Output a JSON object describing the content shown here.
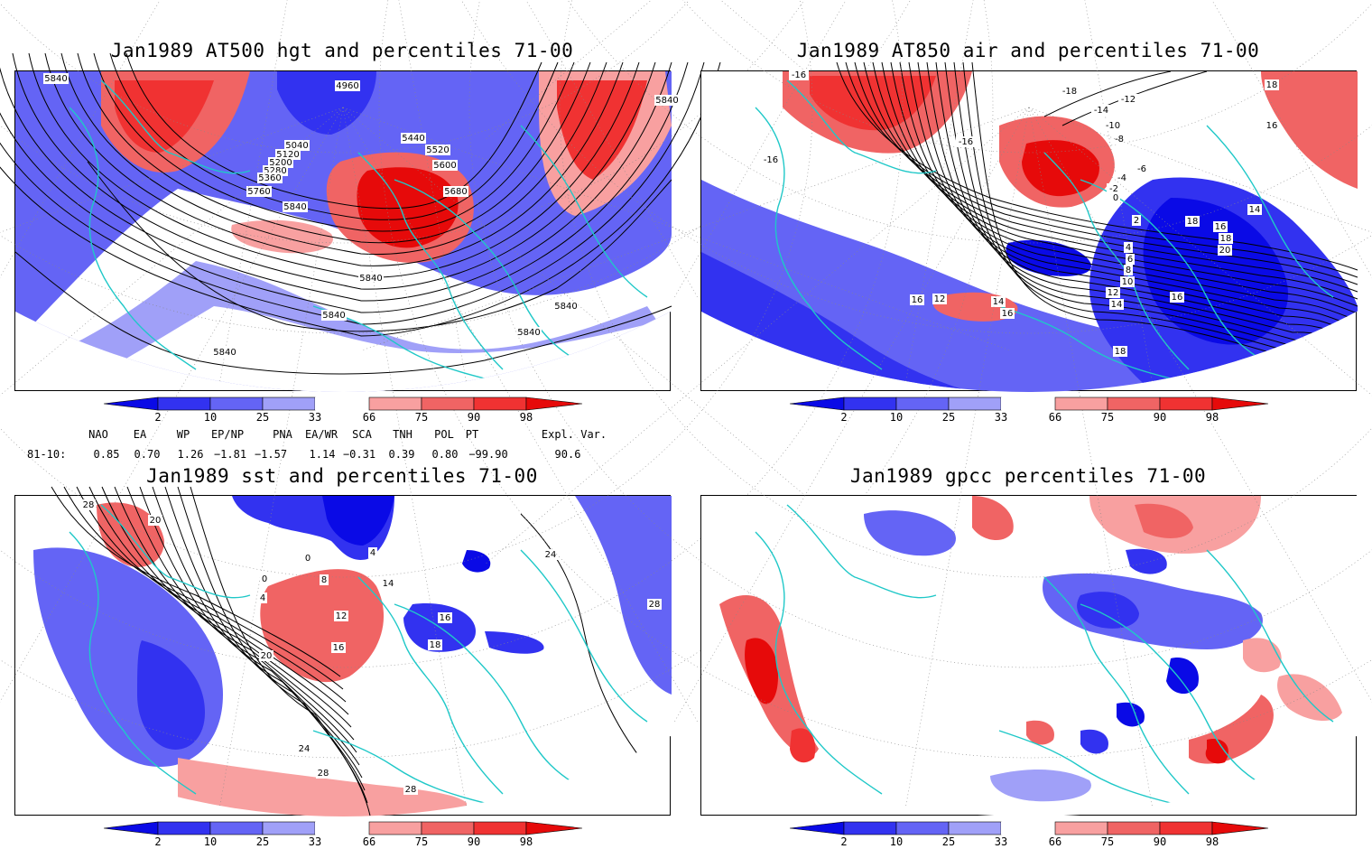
{
  "panels": [
    {
      "title": "Jan1989 AT500 hgt and percentiles 71-00",
      "labels": [
        "5840",
        "4960",
        "5040",
        "5120",
        "5200",
        "5280",
        "5360",
        "5440",
        "5520",
        "5600",
        "5680",
        "5760",
        "5840",
        "5840",
        "5840",
        "5840",
        "5840",
        "5840",
        "5840"
      ]
    },
    {
      "title": "Jan1989 AT850 air and percentiles 71-00",
      "labels": [
        "-16",
        "-18",
        "-14",
        "-12",
        "-10",
        "-8",
        "-6",
        "-4",
        "-2",
        "0",
        "2",
        "4",
        "6",
        "8",
        "10",
        "12",
        "14",
        "16",
        "18",
        "20",
        "16",
        "18",
        "14",
        "16",
        "12",
        "14",
        "16",
        "18",
        "-16",
        "-16",
        "18",
        "16"
      ]
    },
    {
      "title": "Jan1989 sst and percentiles 71-00",
      "labels": [
        "28",
        "20",
        "0",
        "4",
        "8",
        "12",
        "16",
        "20",
        "24",
        "28",
        "28",
        "0",
        "4",
        "14",
        "16",
        "18",
        "24",
        "28"
      ]
    },
    {
      "title": "Jan1989 gpcc percentiles 71-00",
      "labels": []
    }
  ],
  "colorbar": {
    "labels": [
      "2",
      "10",
      "25",
      "33",
      "66",
      "75",
      "90",
      "98"
    ],
    "colors": [
      "#0a0ae6",
      "#3232f0",
      "#6464f5",
      "#a0a0f8",
      "#ffffff",
      "#f8a0a0",
      "#f06464",
      "#f03232",
      "#e60a0a"
    ]
  },
  "indices": {
    "headers": [
      "NAO",
      "EA",
      "WP",
      "EP/NP",
      "PNA",
      "EA/WR",
      "SCA",
      "TNH",
      "POL",
      "PT",
      "Expl. Var."
    ],
    "row_label": "81-10:",
    "values": [
      "0.85",
      "0.70",
      "1.26",
      "−1.81",
      "−1.57",
      "1.14",
      "−0.31",
      "0.39",
      "0.80",
      "−99.90",
      "90.6"
    ]
  }
}
